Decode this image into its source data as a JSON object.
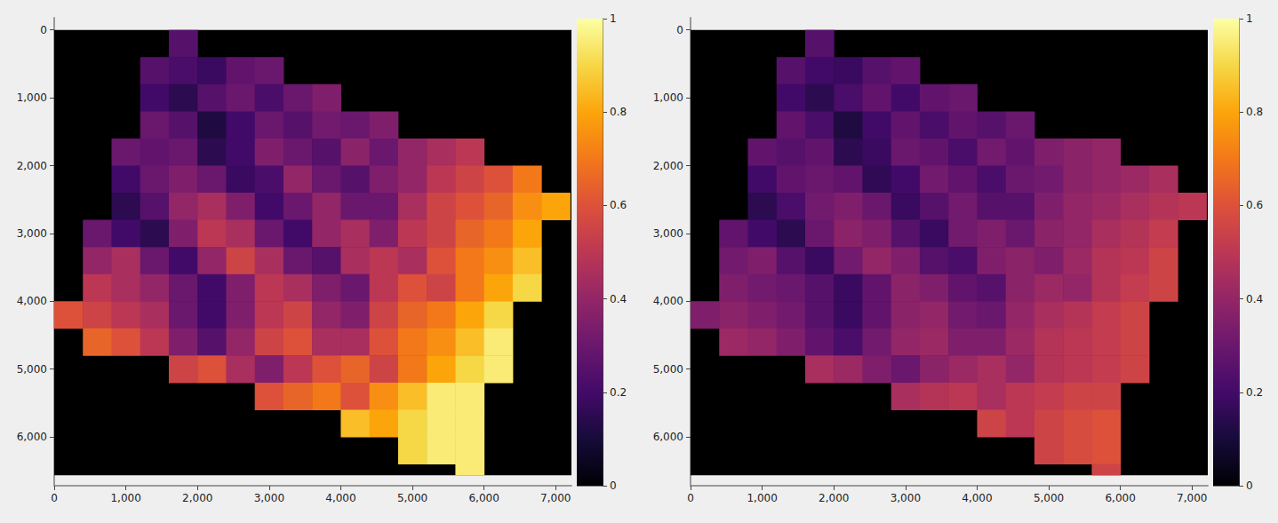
{
  "chart_data": [
    {
      "type": "heatmap",
      "color": "inferno",
      "grid": false,
      "xlim": [
        0,
        7220
      ],
      "ylim": [
        -180,
        6720
      ],
      "xticks": [
        0,
        {
          "value": 1000,
          "label": "1,000"
        },
        {
          "value": 2000,
          "label": "2,000"
        },
        {
          "value": 3000,
          "label": "3,000"
        },
        {
          "value": 4000,
          "label": "4,000"
        },
        {
          "value": 5000,
          "label": "5,000"
        },
        {
          "value": 6000,
          "label": "6,000"
        },
        {
          "value": 7000,
          "label": "7,000"
        }
      ],
      "yticks": [
        0,
        {
          "value": 1000,
          "label": "1,000"
        },
        {
          "value": 2000,
          "label": "2,000"
        },
        {
          "value": 3000,
          "label": "3,000"
        },
        {
          "value": 4000,
          "label": "4,000"
        },
        {
          "value": 5000,
          "label": "5,000"
        },
        {
          "value": 6000,
          "label": "6,000"
        }
      ],
      "x_edges": [
        0,
        400,
        800,
        1200,
        1600,
        2000,
        2400,
        2800,
        3200,
        3600,
        4000,
        4400,
        4800,
        5200,
        5600,
        6000,
        6400,
        6800,
        7200,
        7220
      ],
      "y_edges": [
        0,
        400,
        800,
        1200,
        1600,
        2000,
        2400,
        2800,
        3200,
        3600,
        4000,
        4400,
        4800,
        5200,
        5600,
        6000,
        6400,
        6560
      ],
      "clim": [
        0,
        1
      ],
      "cticks": [
        0,
        0.2,
        0.4,
        0.6,
        0.8,
        1
      ],
      "values": [
        [
          null,
          null,
          null,
          null,
          0.25,
          null,
          null,
          null,
          null,
          null,
          null,
          null,
          null,
          null,
          null,
          null,
          null,
          null,
          null
        ],
        [
          null,
          null,
          null,
          0.25,
          0.22,
          0.18,
          0.28,
          0.3,
          null,
          null,
          null,
          null,
          null,
          null,
          null,
          null,
          null,
          null,
          null
        ],
        [
          null,
          null,
          null,
          0.2,
          0.15,
          0.25,
          0.3,
          0.22,
          0.3,
          0.35,
          null,
          null,
          null,
          null,
          null,
          null,
          null,
          null,
          null
        ],
        [
          null,
          null,
          null,
          0.3,
          0.25,
          0.12,
          0.2,
          0.3,
          0.25,
          0.32,
          0.3,
          0.35,
          null,
          null,
          null,
          null,
          null,
          null,
          null
        ],
        [
          null,
          null,
          0.3,
          0.28,
          0.3,
          0.15,
          0.2,
          0.35,
          0.3,
          0.25,
          0.38,
          0.3,
          0.4,
          0.45,
          0.5,
          null,
          null,
          null,
          null
        ],
        [
          null,
          null,
          0.2,
          0.3,
          0.35,
          0.3,
          0.18,
          0.22,
          0.4,
          0.3,
          0.25,
          0.35,
          0.4,
          0.5,
          0.55,
          0.6,
          0.7,
          null,
          null
        ],
        [
          null,
          null,
          0.15,
          0.25,
          0.4,
          0.45,
          0.35,
          0.2,
          0.3,
          0.4,
          0.3,
          0.3,
          0.45,
          0.55,
          0.6,
          0.65,
          0.75,
          0.8,
          null
        ],
        [
          null,
          0.3,
          0.2,
          0.15,
          0.35,
          0.5,
          0.45,
          0.3,
          0.2,
          0.4,
          0.45,
          0.35,
          0.5,
          0.55,
          0.65,
          0.7,
          0.8,
          null,
          null
        ],
        [
          null,
          0.4,
          0.45,
          0.3,
          0.2,
          0.4,
          0.55,
          0.45,
          0.3,
          0.25,
          0.45,
          0.5,
          0.45,
          0.6,
          0.7,
          0.75,
          0.85,
          null,
          null
        ],
        [
          null,
          0.5,
          0.45,
          0.4,
          0.3,
          0.2,
          0.35,
          0.5,
          0.45,
          0.35,
          0.3,
          0.5,
          0.6,
          0.55,
          0.7,
          0.8,
          0.9,
          null,
          null
        ],
        [
          0.6,
          0.55,
          0.5,
          0.45,
          0.3,
          0.2,
          0.35,
          0.5,
          0.55,
          0.4,
          0.35,
          0.55,
          0.65,
          0.7,
          0.8,
          0.9,
          null,
          null,
          null
        ],
        [
          null,
          0.65,
          0.6,
          0.5,
          0.35,
          0.25,
          0.4,
          0.55,
          0.6,
          0.45,
          0.45,
          0.6,
          0.7,
          0.75,
          0.85,
          0.95,
          null,
          null,
          null
        ],
        [
          null,
          null,
          null,
          null,
          0.55,
          0.6,
          0.45,
          0.35,
          0.5,
          0.6,
          0.65,
          0.55,
          0.7,
          0.8,
          0.9,
          0.95,
          null,
          null,
          null
        ],
        [
          null,
          null,
          null,
          null,
          null,
          null,
          null,
          0.6,
          0.65,
          0.7,
          0.6,
          0.75,
          0.85,
          0.95,
          0.95,
          null,
          null,
          null,
          null
        ],
        [
          null,
          null,
          null,
          null,
          null,
          null,
          null,
          null,
          null,
          null,
          0.85,
          0.8,
          0.9,
          0.95,
          0.95,
          null,
          null,
          null,
          null
        ],
        [
          null,
          null,
          null,
          null,
          null,
          null,
          null,
          null,
          null,
          null,
          null,
          null,
          0.9,
          0.95,
          0.95,
          null,
          null,
          null,
          null
        ],
        [
          null,
          null,
          null,
          null,
          null,
          null,
          null,
          null,
          null,
          null,
          null,
          null,
          null,
          null,
          0.95,
          null,
          null,
          null,
          null
        ]
      ]
    },
    {
      "type": "heatmap",
      "color": "inferno",
      "grid": false,
      "xlim": [
        0,
        7220
      ],
      "ylim": [
        -180,
        6720
      ],
      "xticks": [
        0,
        {
          "value": 1000,
          "label": "1,000"
        },
        {
          "value": 2000,
          "label": "2,000"
        },
        {
          "value": 3000,
          "label": "3,000"
        },
        {
          "value": 4000,
          "label": "4,000"
        },
        {
          "value": 5000,
          "label": "5,000"
        },
        {
          "value": 6000,
          "label": "6,000"
        },
        {
          "value": 7000,
          "label": "7,000"
        }
      ],
      "yticks": [
        0,
        {
          "value": 1000,
          "label": "1,000"
        },
        {
          "value": 2000,
          "label": "2,000"
        },
        {
          "value": 3000,
          "label": "3,000"
        },
        {
          "value": 4000,
          "label": "4,000"
        },
        {
          "value": 5000,
          "label": "5,000"
        },
        {
          "value": 6000,
          "label": "6,000"
        }
      ],
      "x_edges": [
        0,
        400,
        800,
        1200,
        1600,
        2000,
        2400,
        2800,
        3200,
        3600,
        4000,
        4400,
        4800,
        5200,
        5600,
        6000,
        6400,
        6800,
        7200,
        7220
      ],
      "y_edges": [
        0,
        400,
        800,
        1200,
        1600,
        2000,
        2400,
        2800,
        3200,
        3600,
        4000,
        4400,
        4800,
        5200,
        5600,
        6000,
        6400,
        6560
      ],
      "clim": [
        0,
        1
      ],
      "cticks": [
        0,
        0.2,
        0.4,
        0.6,
        0.8,
        1
      ],
      "values": [
        [
          null,
          null,
          null,
          null,
          0.25,
          null,
          null,
          null,
          null,
          null,
          null,
          null,
          null,
          null,
          null,
          null,
          null,
          null,
          null
        ],
        [
          null,
          null,
          null,
          0.25,
          0.2,
          0.18,
          0.25,
          0.28,
          null,
          null,
          null,
          null,
          null,
          null,
          null,
          null,
          null,
          null,
          null
        ],
        [
          null,
          null,
          null,
          0.2,
          0.15,
          0.22,
          0.28,
          0.2,
          0.28,
          0.3,
          null,
          null,
          null,
          null,
          null,
          null,
          null,
          null,
          null
        ],
        [
          null,
          null,
          null,
          0.28,
          0.22,
          0.12,
          0.2,
          0.28,
          0.22,
          0.28,
          0.25,
          0.3,
          null,
          null,
          null,
          null,
          null,
          null,
          null
        ],
        [
          null,
          null,
          0.28,
          0.25,
          0.28,
          0.15,
          0.18,
          0.3,
          0.28,
          0.22,
          0.32,
          0.28,
          0.35,
          0.38,
          0.4,
          null,
          null,
          null,
          null
        ],
        [
          null,
          null,
          0.2,
          0.28,
          0.3,
          0.28,
          0.16,
          0.2,
          0.32,
          0.28,
          0.22,
          0.3,
          0.32,
          0.38,
          0.4,
          0.42,
          0.45,
          null,
          null
        ],
        [
          null,
          null,
          0.15,
          0.22,
          0.32,
          0.35,
          0.3,
          0.18,
          0.25,
          0.32,
          0.25,
          0.25,
          0.35,
          0.4,
          0.42,
          0.45,
          0.48,
          0.5,
          null
        ],
        [
          null,
          0.28,
          0.2,
          0.15,
          0.3,
          0.38,
          0.35,
          0.25,
          0.18,
          0.32,
          0.35,
          0.3,
          0.38,
          0.4,
          0.45,
          0.48,
          0.52,
          null,
          null
        ],
        [
          null,
          0.32,
          0.35,
          0.25,
          0.18,
          0.32,
          0.4,
          0.35,
          0.25,
          0.22,
          0.35,
          0.38,
          0.35,
          0.42,
          0.48,
          0.5,
          0.55,
          null,
          null
        ],
        [
          null,
          0.35,
          0.32,
          0.3,
          0.25,
          0.18,
          0.28,
          0.38,
          0.35,
          0.28,
          0.25,
          0.38,
          0.42,
          0.4,
          0.48,
          0.52,
          0.55,
          null,
          null
        ],
        [
          0.35,
          0.38,
          0.35,
          0.32,
          0.25,
          0.18,
          0.28,
          0.38,
          0.4,
          0.32,
          0.3,
          0.4,
          0.45,
          0.48,
          0.52,
          0.55,
          null,
          null,
          null
        ],
        [
          null,
          0.42,
          0.4,
          0.35,
          0.28,
          0.22,
          0.32,
          0.4,
          0.42,
          0.35,
          0.35,
          0.42,
          0.48,
          0.5,
          0.52,
          0.55,
          null,
          null,
          null
        ],
        [
          null,
          null,
          null,
          null,
          0.45,
          0.42,
          0.35,
          0.3,
          0.38,
          0.42,
          0.45,
          0.4,
          0.48,
          0.5,
          0.52,
          0.55,
          null,
          null,
          null
        ],
        [
          null,
          null,
          null,
          null,
          null,
          null,
          null,
          0.45,
          0.48,
          0.5,
          0.45,
          0.5,
          0.52,
          0.55,
          0.55,
          null,
          null,
          null,
          null
        ],
        [
          null,
          null,
          null,
          null,
          null,
          null,
          null,
          null,
          null,
          null,
          0.55,
          0.5,
          0.55,
          0.58,
          0.6,
          null,
          null,
          null,
          null
        ],
        [
          null,
          null,
          null,
          null,
          null,
          null,
          null,
          null,
          null,
          null,
          null,
          null,
          0.55,
          0.58,
          0.6,
          null,
          null,
          null,
          null
        ],
        [
          null,
          null,
          null,
          null,
          null,
          null,
          null,
          null,
          null,
          null,
          null,
          null,
          null,
          null,
          0.55,
          null,
          null,
          null,
          null
        ]
      ]
    }
  ]
}
